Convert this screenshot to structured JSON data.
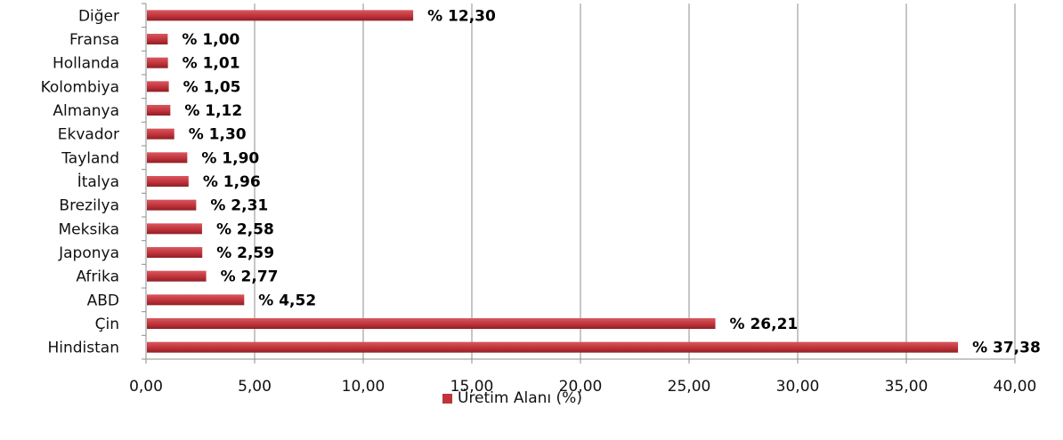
{
  "chart_data": {
    "type": "bar",
    "orientation": "horizontal",
    "categories": [
      "Diğer",
      "Fransa",
      "Hollanda",
      "Kolombiya",
      "Almanya",
      "Ekvador",
      "Tayland",
      "İtalya",
      "Brezilya",
      "Meksika",
      "Japonya",
      "Afrika",
      "ABD",
      "Çin",
      "Hindistan"
    ],
    "values": [
      12.3,
      1.0,
      1.01,
      1.05,
      1.12,
      1.3,
      1.9,
      1.96,
      2.31,
      2.58,
      2.59,
      2.77,
      4.52,
      26.21,
      37.38
    ],
    "value_labels": [
      "% 12,30",
      "% 1,00",
      "% 1,01",
      "% 1,05",
      "% 1,12",
      "% 1,30",
      "% 1,90",
      "% 1,96",
      "% 2,31",
      "% 2,58",
      "% 2,59",
      "% 2,77",
      "% 4,52",
      "% 26,21",
      "% 37,38"
    ],
    "series": [
      {
        "name": "Üretim Alanı (%)"
      }
    ],
    "xlim": [
      0,
      40
    ],
    "xticks": [
      0,
      5,
      10,
      15,
      20,
      25,
      30,
      35,
      40
    ],
    "xtick_labels": [
      "0,00",
      "5,00",
      "10,00",
      "15,00",
      "20,00",
      "25,00",
      "30,00",
      "35,00",
      "40,00"
    ],
    "grid": "vertical",
    "legend_position": "bottom",
    "bar_color": "#c0333b",
    "grid_color": "#8c8c8c"
  }
}
